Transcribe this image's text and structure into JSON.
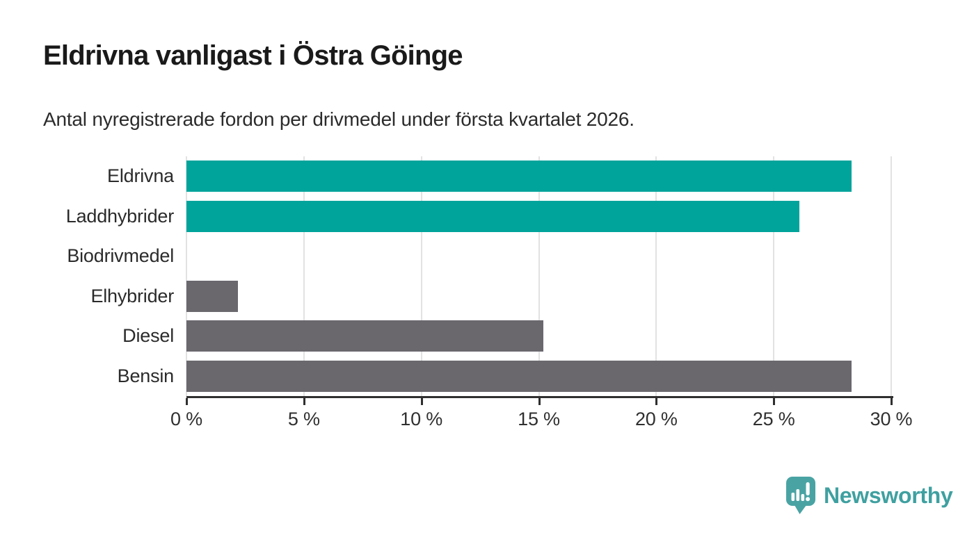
{
  "chart_data": {
    "type": "bar",
    "orientation": "horizontal",
    "title": "Eldrivna vanligast i Östra Göinge",
    "subtitle": "Antal nyregistrerade fordon per drivmedel under första kvartalet 2026.",
    "categories": [
      "Eldrivna",
      "Laddhybrider",
      "Biodrivmedel",
      "Elhybrider",
      "Diesel",
      "Bensin"
    ],
    "values": [
      28.3,
      26.1,
      0,
      2.2,
      15.2,
      28.3
    ],
    "bar_colors": [
      "#00a49b",
      "#00a49b",
      "#6a676d",
      "#6a676d",
      "#6a676d",
      "#6a676d"
    ],
    "unit": "%",
    "xlim": [
      0,
      30
    ],
    "x_ticks": [
      0,
      5,
      10,
      15,
      20,
      25,
      30
    ],
    "x_tick_labels": [
      "0 %",
      "5 %",
      "10 %",
      "15 %",
      "20 %",
      "25 %",
      "30 %"
    ],
    "grid": "vertical-gridlines-on",
    "legend": "none"
  },
  "branding": {
    "logo_text": "Newsworthy",
    "logo_icon": "speech-bubble-bar-chart-icon",
    "logo_color": "#3fa0a0",
    "logo_icon_fill": "#4aa3a3"
  },
  "colors": {
    "accent_teal": "#00a49b",
    "neutral_gray": "#6a676d",
    "gridline": "#e2e2e2",
    "axis": "#2f2f2f",
    "title_text": "#1a1a1a",
    "body_text": "#2b2b2b",
    "background": "#ffffff"
  }
}
